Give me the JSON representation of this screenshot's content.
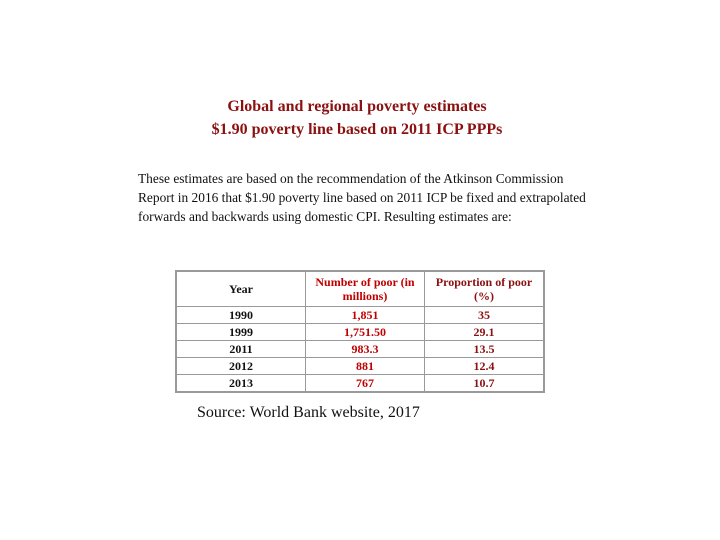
{
  "header": {
    "title": [
      "Global and regional poverty estimates",
      "$1.90 poverty line based on 2011 ICP PPPs"
    ]
  },
  "intro": "These estimates are based on the recommendation of the Atkinson Commission Report in 2016 that $1.90 poverty line based on 2011 ICP be fixed and extrapolated forwards and backwards using domestic CPI. Resulting estimates are:",
  "table": {
    "columns": [
      "Year",
      "Number of poor (in millions)",
      "Proportion of poor (%)"
    ],
    "rows": [
      [
        "1990",
        "1,851",
        "35"
      ],
      [
        "1999",
        "1,751.50",
        "29.1"
      ],
      [
        "2011",
        "983.3",
        "13.5"
      ],
      [
        "2012",
        "881",
        "12.4"
      ],
      [
        "2013",
        "767",
        "10.7"
      ]
    ]
  },
  "source": "Source: World Bank website, 2017"
}
